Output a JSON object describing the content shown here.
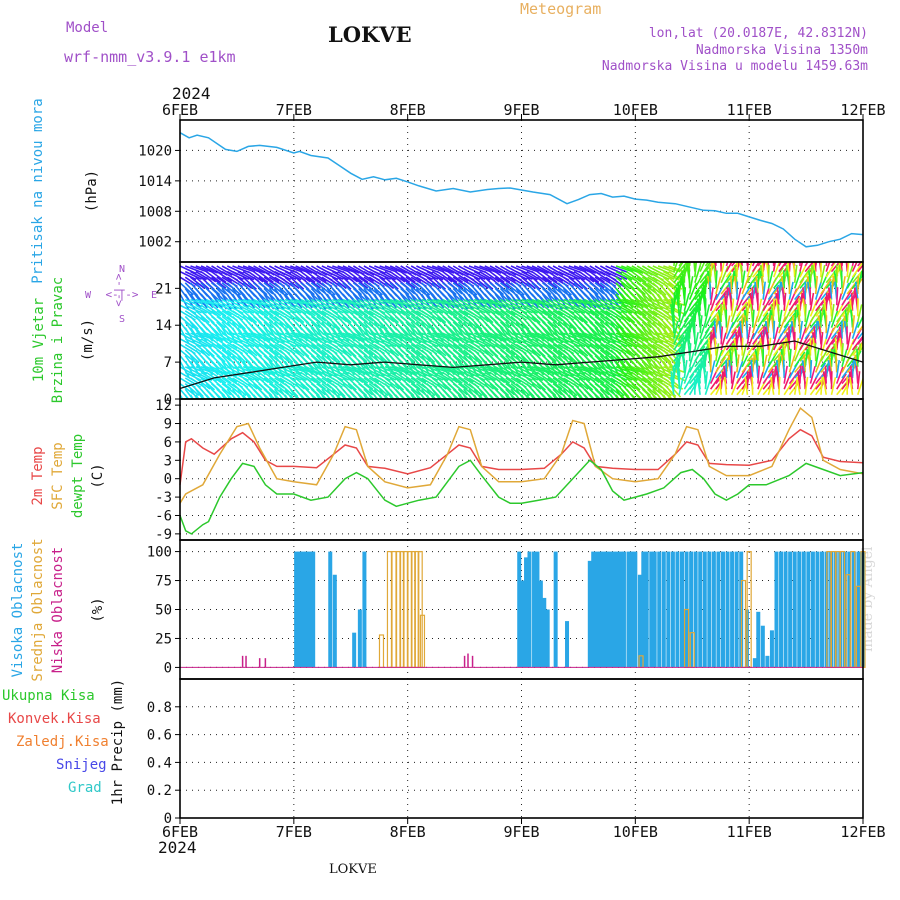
{
  "header": {
    "model_label": "Model",
    "model_name": "wrf-nmm_v3.9.1 e1km",
    "title": "LOKVE",
    "meteogram": "Meteogram",
    "lonlat": "lon,lat (20.0187E, 42.8312N)",
    "elevation": "Nadmorska Visina 1350m",
    "model_elevation": "Nadmorska Visina u modelu 1459.63m"
  },
  "footer": {
    "station": "LOKVE",
    "watermark": "made by Angel"
  },
  "time_axis": {
    "year": "2024",
    "dates": [
      "6FEB",
      "7FEB",
      "8FEB",
      "9FEB",
      "10FEB",
      "11FEB",
      "12FEB"
    ]
  },
  "panel_labels": {
    "pressure": [
      "Pritisak na nivou mora",
      "(hPa)"
    ],
    "wind": [
      "10m Vjetar",
      "Brzina i Pravac",
      "(m/s)"
    ],
    "wind_compass": {
      "north": "N",
      "south": "S",
      "west": "W",
      "east": "E",
      "arrows": "<-|->"
    },
    "temp": [
      "2m Temp",
      "SFC Temp",
      "dewpt Temp",
      "(C)"
    ],
    "cloud": [
      "Visoka Oblacnost",
      "Srednja Oblacnost",
      "Niska Oblacnost",
      "(%)"
    ],
    "precip_legend": [
      "Ukupna Kisa",
      "Konvek.Kisa",
      "Zaledj.Kisa",
      "Snijeg",
      "Grad"
    ],
    "precip_units": "1hr Precip (mm)"
  },
  "colors": {
    "pressure": "#2aa6e6",
    "temp2m": "#e84848",
    "sfc": "#e0a838",
    "dew": "#2cc82c",
    "cloud_high": "#2aa6e6",
    "cloud_mid": "#e0a838",
    "cloud_low": "#c8208a",
    "purple": "#a050c8",
    "legend": [
      "#2cc82c",
      "#e84848",
      "#f08030",
      "#4848e8",
      "#30c8c8"
    ]
  },
  "chart_data": [
    {
      "type": "line",
      "title": "Pritisak na nivou mora",
      "ylabel": "(hPa)",
      "x_range_days": [
        0,
        6
      ],
      "ylim": [
        998,
        1026
      ],
      "yticks": [
        1002,
        1008,
        1014,
        1020
      ],
      "series": [
        {
          "x": [
            0,
            0.08,
            0.15,
            0.25,
            0.4,
            0.5,
            0.6,
            0.7,
            0.85,
            1.0,
            1.05,
            1.15,
            1.3,
            1.4,
            1.5,
            1.6,
            1.7,
            1.8,
            1.9,
            2.0,
            2.1,
            2.25,
            2.4,
            2.55,
            2.7,
            2.8,
            2.9,
            3.0,
            3.1,
            3.25,
            3.4,
            3.5,
            3.6,
            3.7,
            3.8,
            3.9,
            4.0,
            4.1,
            4.2,
            4.35,
            4.5,
            4.6,
            4.7,
            4.8,
            4.9,
            5.0,
            5.1,
            5.2,
            5.3,
            5.4,
            5.5,
            5.6,
            5.7,
            5.8,
            5.9,
            6.0
          ],
          "values": [
            1023.5,
            1022.5,
            1023,
            1022.5,
            1020.2,
            1019.8,
            1020.8,
            1021,
            1020.6,
            1019.5,
            1019.8,
            1019,
            1018.5,
            1017,
            1015.5,
            1014.3,
            1014.8,
            1014.2,
            1014.5,
            1013.8,
            1013,
            1012,
            1012.5,
            1011.8,
            1012.3,
            1012.5,
            1012.6,
            1012.2,
            1011.8,
            1011.3,
            1009.5,
            1010.3,
            1011.3,
            1011.5,
            1010.8,
            1011,
            1010.4,
            1010.2,
            1009.8,
            1009.5,
            1008.7,
            1008.2,
            1008.1,
            1007.6,
            1007.6,
            1006.9,
            1006.2,
            1005.6,
            1004.5,
            1002.5,
            1001,
            1001.3,
            1002,
            1002.5,
            1003.6,
            1003.4
          ]
        }
      ]
    },
    {
      "type": "line",
      "title": "10m Vjetar Brzina i Pravac",
      "ylabel": "(m/s)",
      "x_range_days": [
        0,
        6
      ],
      "ylim": [
        0,
        26
      ],
      "yticks": [
        0,
        7,
        14,
        21
      ],
      "series": [
        {
          "name": "speed",
          "x": [
            0,
            0.3,
            0.6,
            0.9,
            1.2,
            1.5,
            1.8,
            2.1,
            2.4,
            2.7,
            3.0,
            3.3,
            3.6,
            3.9,
            4.2,
            4.5,
            4.8,
            5.1,
            5.4,
            5.7,
            6.0
          ],
          "values": [
            2,
            4,
            5,
            6,
            7,
            6.5,
            7,
            6.5,
            6,
            6.5,
            7,
            6.5,
            7,
            7.5,
            8,
            9,
            10,
            10,
            11,
            9,
            7
          ]
        }
      ]
    },
    {
      "type": "line",
      "title": "2m Temp / SFC Temp / dewpt Temp",
      "ylabel": "(C)",
      "x_range_days": [
        0,
        6
      ],
      "ylim": [
        -10,
        13
      ],
      "yticks": [
        -9,
        -6,
        -3,
        0,
        3,
        6,
        9,
        12
      ],
      "series": [
        {
          "name": "2m Temp",
          "x": [
            0,
            0.05,
            0.1,
            0.2,
            0.3,
            0.45,
            0.55,
            0.65,
            0.75,
            0.85,
            1.0,
            1.2,
            1.35,
            1.45,
            1.55,
            1.65,
            1.8,
            2.0,
            2.2,
            2.35,
            2.45,
            2.55,
            2.65,
            2.8,
            3.0,
            3.2,
            3.35,
            3.45,
            3.55,
            3.65,
            3.8,
            4.0,
            4.2,
            4.35,
            4.45,
            4.55,
            4.65,
            4.8,
            5.0,
            5.2,
            5.35,
            5.45,
            5.55,
            5.65,
            5.8,
            6.0
          ],
          "values": [
            -1,
            6,
            6.5,
            5,
            4,
            6.5,
            7.5,
            6,
            3,
            2,
            2,
            1.8,
            4,
            5.5,
            5,
            2,
            1.7,
            0.8,
            1.8,
            4,
            5.5,
            5,
            2,
            1.5,
            1.5,
            1.7,
            4,
            6,
            5,
            2,
            1.7,
            1.5,
            1.5,
            4,
            6,
            5.5,
            2.5,
            2.3,
            2.2,
            3,
            6.5,
            8,
            7,
            3.5,
            2.8,
            2.6
          ]
        },
        {
          "name": "SFC Temp",
          "x": [
            0,
            0.05,
            0.2,
            0.35,
            0.5,
            0.6,
            0.7,
            0.85,
            1.0,
            1.2,
            1.35,
            1.45,
            1.55,
            1.65,
            1.8,
            2.0,
            2.2,
            2.35,
            2.45,
            2.55,
            2.65,
            2.8,
            3.0,
            3.2,
            3.35,
            3.45,
            3.55,
            3.65,
            3.8,
            4.0,
            4.2,
            4.35,
            4.45,
            4.55,
            4.65,
            4.8,
            5.0,
            5.2,
            5.35,
            5.45,
            5.55,
            5.65,
            5.8,
            6.0
          ],
          "values": [
            -4,
            -2.5,
            -1,
            4,
            8.5,
            9,
            5,
            0,
            -0.5,
            -1,
            4,
            8.5,
            8,
            2,
            -0.5,
            -1.5,
            -1,
            4,
            8.5,
            8,
            2,
            -0.5,
            -0.5,
            0,
            4,
            9.5,
            9,
            2,
            0,
            -0.5,
            0,
            4,
            8.5,
            8,
            2,
            0.5,
            0.5,
            2,
            8,
            11.5,
            10,
            3,
            1.5,
            0.8
          ]
        },
        {
          "name": "dewpt Temp",
          "x": [
            0,
            0.05,
            0.1,
            0.2,
            0.25,
            0.35,
            0.45,
            0.55,
            0.65,
            0.75,
            0.85,
            1.0,
            1.15,
            1.3,
            1.45,
            1.55,
            1.65,
            1.8,
            1.9,
            2.0,
            2.1,
            2.25,
            2.45,
            2.55,
            2.65,
            2.8,
            2.9,
            3.0,
            3.15,
            3.3,
            3.45,
            3.6,
            3.7,
            3.8,
            3.9,
            4.0,
            4.1,
            4.25,
            4.4,
            4.5,
            4.6,
            4.7,
            4.8,
            4.9,
            5.0,
            5.15,
            5.35,
            5.5,
            5.65,
            5.8,
            6.0
          ],
          "values": [
            -6,
            -8.5,
            -9,
            -7.5,
            -7,
            -3,
            0,
            2.5,
            2,
            -1,
            -2.5,
            -2.5,
            -3.5,
            -3,
            0,
            1,
            0,
            -3.5,
            -4.5,
            -4,
            -3.5,
            -3,
            2,
            3,
            0.5,
            -3,
            -4,
            -4,
            -3.5,
            -3,
            0,
            3,
            1.5,
            -2,
            -3.5,
            -3,
            -2.5,
            -1.5,
            1,
            1.5,
            0,
            -2.5,
            -3.5,
            -2.5,
            -1,
            -1,
            0.5,
            2.5,
            1.5,
            0.5,
            1
          ]
        }
      ]
    },
    {
      "type": "bar",
      "title": "Visoka / Srednja / Niska Oblacnost",
      "ylabel": "(%)",
      "x_range_days": [
        0,
        6
      ],
      "ylim": [
        -10,
        110
      ],
      "yticks": [
        0,
        25,
        50,
        75,
        100
      ],
      "series": [
        {
          "name": "Visoka Oblacnost",
          "x": [
            1.02,
            1.05,
            1.08,
            1.11,
            1.14,
            1.17,
            1.32,
            1.36,
            1.53,
            1.58,
            1.62,
            2.98,
            3.01,
            3.04,
            3.07,
            3.11,
            3.14,
            3.17,
            3.2,
            3.23,
            3.3,
            3.4,
            3.6,
            3.63,
            3.66,
            3.69,
            3.72,
            3.75,
            3.78,
            3.81,
            3.84,
            3.87,
            3.9,
            3.94,
            3.97,
            4.0,
            4.04,
            4.07,
            4.1,
            4.14,
            4.17,
            4.21,
            4.25,
            4.29,
            4.33,
            4.37,
            4.41,
            4.45,
            4.49,
            4.53,
            4.57,
            4.61,
            4.65,
            4.69,
            4.73,
            4.77,
            4.81,
            4.85,
            4.89,
            4.93,
            4.98,
            5.0,
            5.05,
            5.08,
            5.12,
            5.16,
            5.2,
            5.24,
            5.28,
            5.32,
            5.36,
            5.4,
            5.44,
            5.48,
            5.52,
            5.56,
            5.6,
            5.64,
            5.68,
            5.72,
            5.76,
            5.8,
            5.84,
            5.88,
            5.92,
            5.96,
            6.0
          ],
          "values": [
            100,
            100,
            100,
            100,
            100,
            100,
            100,
            80,
            30,
            50,
            100,
            100,
            75,
            95,
            100,
            100,
            100,
            75,
            60,
            50,
            100,
            40,
            92,
            100,
            100,
            100,
            100,
            100,
            100,
            100,
            100,
            100,
            100,
            100,
            100,
            100,
            80,
            100,
            100,
            100,
            100,
            100,
            100,
            100,
            100,
            100,
            100,
            100,
            100,
            100,
            100,
            100,
            100,
            100,
            100,
            100,
            100,
            100,
            100,
            100,
            50,
            0,
            8,
            48,
            36,
            10,
            32,
            100,
            100,
            100,
            100,
            100,
            100,
            100,
            100,
            100,
            100,
            100,
            100,
            100,
            100,
            100,
            100,
            100,
            100,
            100,
            100
          ]
        },
        {
          "name": "Srednja Oblacnost",
          "x": [
            1.77,
            1.84,
            1.88,
            1.92,
            1.95,
            1.98,
            2.02,
            2.05,
            2.08,
            2.11,
            2.13,
            4.05,
            4.45,
            4.5,
            4.95,
            5.0,
            5.7,
            5.74,
            5.78,
            5.82,
            5.87,
            5.91,
            5.96,
            6.0
          ],
          "values": [
            28,
            100,
            100,
            100,
            100,
            100,
            100,
            100,
            100,
            100,
            45,
            10,
            50,
            30,
            75,
            100,
            100,
            100,
            100,
            100,
            80,
            100,
            70,
            100
          ]
        },
        {
          "name": "Niska Oblacnost",
          "x": [
            0.55,
            0.58,
            0.7,
            0.75,
            2.5,
            2.53,
            2.57
          ],
          "values": [
            10,
            10,
            8,
            8,
            10,
            12,
            10
          ]
        }
      ]
    },
    {
      "type": "line",
      "title": "1hr Precip",
      "ylabel": "1hr Precip (mm)",
      "x_range_days": [
        0,
        6
      ],
      "ylim": [
        0,
        1
      ],
      "yticks": [
        0,
        0.2,
        0.4,
        0.6,
        0.8
      ],
      "series": []
    }
  ]
}
